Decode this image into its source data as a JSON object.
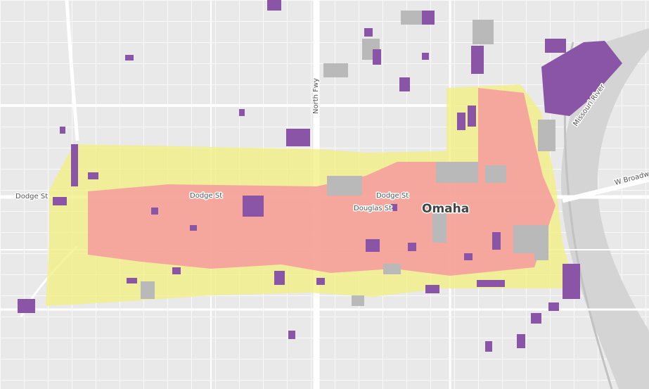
{
  "labels": [
    "Dodge St",
    "Dodge St",
    "Dodge St",
    "Douglas St",
    "Omaha",
    "North Fwy",
    "Missouri River",
    "W Broadway"
  ]
}
